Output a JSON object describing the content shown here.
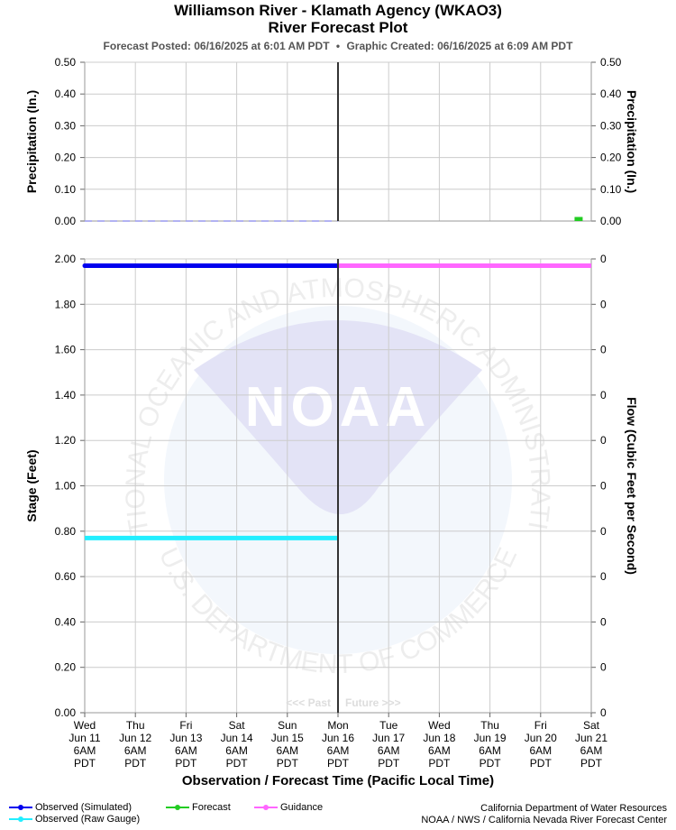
{
  "title": "Williamson River - Klamath Agency (WKAO3)",
  "subtitle": "River Forecast Plot",
  "posted": "Forecast Posted: 06/16/2025 at 6:01 AM PDT",
  "created": "Graphic Created: 06/16/2025 at 6:09 AM PDT",
  "separator": "•",
  "watermark": {
    "main": "NOAA",
    "ring_top": "NATIONAL OCEANIC AND ATMOSPHERIC ADMINISTRATION",
    "ring_bottom": "U.S. DEPARTMENT OF COMMERCE"
  },
  "past_label": "<<< Past",
  "future_label": "Future >>>",
  "credit_line1": "California Department of Water Resources",
  "credit_line2": "NOAA / NWS / California Nevada River Forecast Center",
  "colors": {
    "observed_simulated": "#0000ee",
    "observed_raw": "#22eeff",
    "forecast": "#22cc22",
    "guidance": "#ff66ff",
    "grid": "#cccccc",
    "now_line": "#333333",
    "precip_obs": "#9999ee"
  },
  "chart_data": [
    {
      "type": "bar",
      "name": "precipitation",
      "ylabel_left": "Precipitation (In.)",
      "ylabel_right": "Precipitation (In.)",
      "ylim": [
        0,
        0.5
      ],
      "yticks": [
        "0.00",
        "0.10",
        "0.20",
        "0.30",
        "0.40",
        "0.50"
      ],
      "observed_value": 0.0,
      "forecast_bars": [
        {
          "x": "Jun 21 00:00",
          "value": 0.01
        }
      ]
    },
    {
      "type": "line",
      "name": "stage",
      "ylabel_left": "Stage (Feet)",
      "ylabel_right": "Flow (Cubic Feet per Second)",
      "ylim": [
        0,
        2.0
      ],
      "yticks": [
        "0.00",
        "0.20",
        "0.40",
        "0.60",
        "0.80",
        "1.00",
        "1.20",
        "1.40",
        "1.60",
        "1.80",
        "2.00"
      ],
      "yticks_right": [
        "0",
        "0",
        "0",
        "0",
        "0",
        "0",
        "0",
        "0",
        "0",
        "0",
        "0"
      ],
      "xlabel": "Observation / Forecast Time (Pacific Local Time)",
      "x_ticks": [
        [
          "Wed",
          "Jun 11",
          "6AM",
          "PDT"
        ],
        [
          "Thu",
          "Jun 12",
          "6AM",
          "PDT"
        ],
        [
          "Fri",
          "Jun 13",
          "6AM",
          "PDT"
        ],
        [
          "Sat",
          "Jun 14",
          "6AM",
          "PDT"
        ],
        [
          "Sun",
          "Jun 15",
          "6AM",
          "PDT"
        ],
        [
          "Mon",
          "Jun 16",
          "6AM",
          "PDT"
        ],
        [
          "Tue",
          "Jun 17",
          "6AM",
          "PDT"
        ],
        [
          "Wed",
          "Jun 18",
          "6AM",
          "PDT"
        ],
        [
          "Thu",
          "Jun 19",
          "6AM",
          "PDT"
        ],
        [
          "Fri",
          "Jun 20",
          "6AM",
          "PDT"
        ],
        [
          "Sat",
          "Jun 21",
          "6AM",
          "PDT"
        ]
      ],
      "now": "Jun 16 6AM",
      "series": [
        {
          "name": "Observed (Simulated)",
          "x_range": [
            "Jun 11 6AM",
            "Jun 16 6AM"
          ],
          "value": 1.97
        },
        {
          "name": "Observed (Raw Gauge)",
          "x_range": [
            "Jun 11 6AM",
            "Jun 16 6AM"
          ],
          "value": 0.77
        },
        {
          "name": "Forecast",
          "x_range": [],
          "value": null
        },
        {
          "name": "Guidance",
          "x_range": [
            "Jun 16 6AM",
            "Jun 21 6AM"
          ],
          "value": 1.97
        }
      ]
    }
  ]
}
